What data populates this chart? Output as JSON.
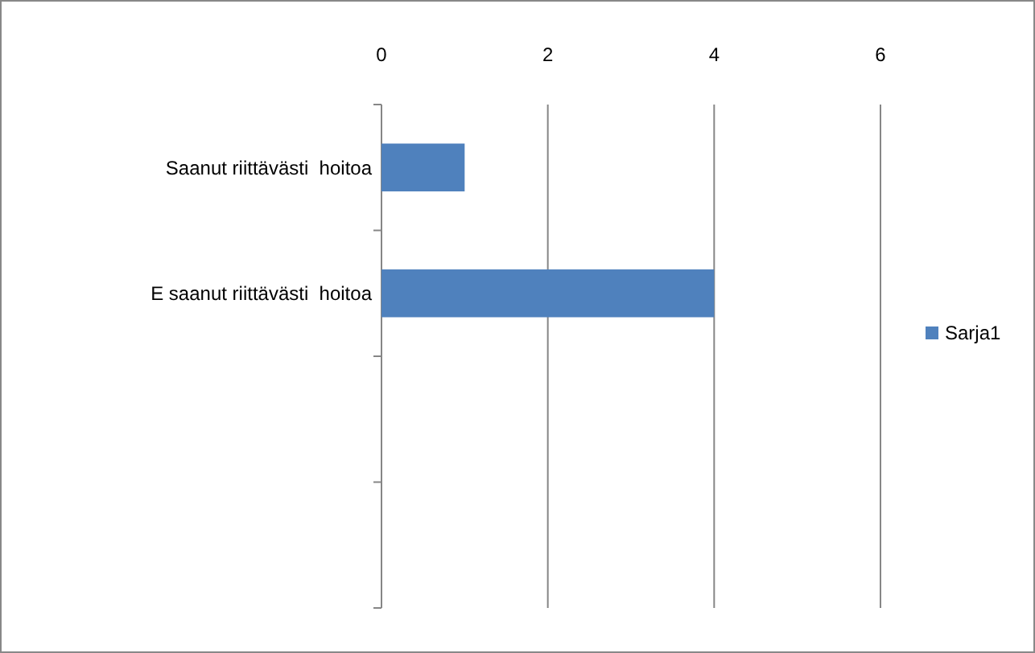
{
  "chart_data": {
    "type": "bar",
    "orientation": "horizontal",
    "categories": [
      "Saanut riittävästi  hoitoa",
      "E saanut riittävästi  hoitoa",
      null,
      null
    ],
    "series": [
      {
        "name": "Sarja1",
        "color": "#4f81bd",
        "values": [
          1,
          4,
          null,
          null
        ]
      }
    ],
    "xlim": [
      0,
      6
    ],
    "xticks": [
      0,
      2,
      4,
      6
    ],
    "grid": "x",
    "legend": "right"
  }
}
